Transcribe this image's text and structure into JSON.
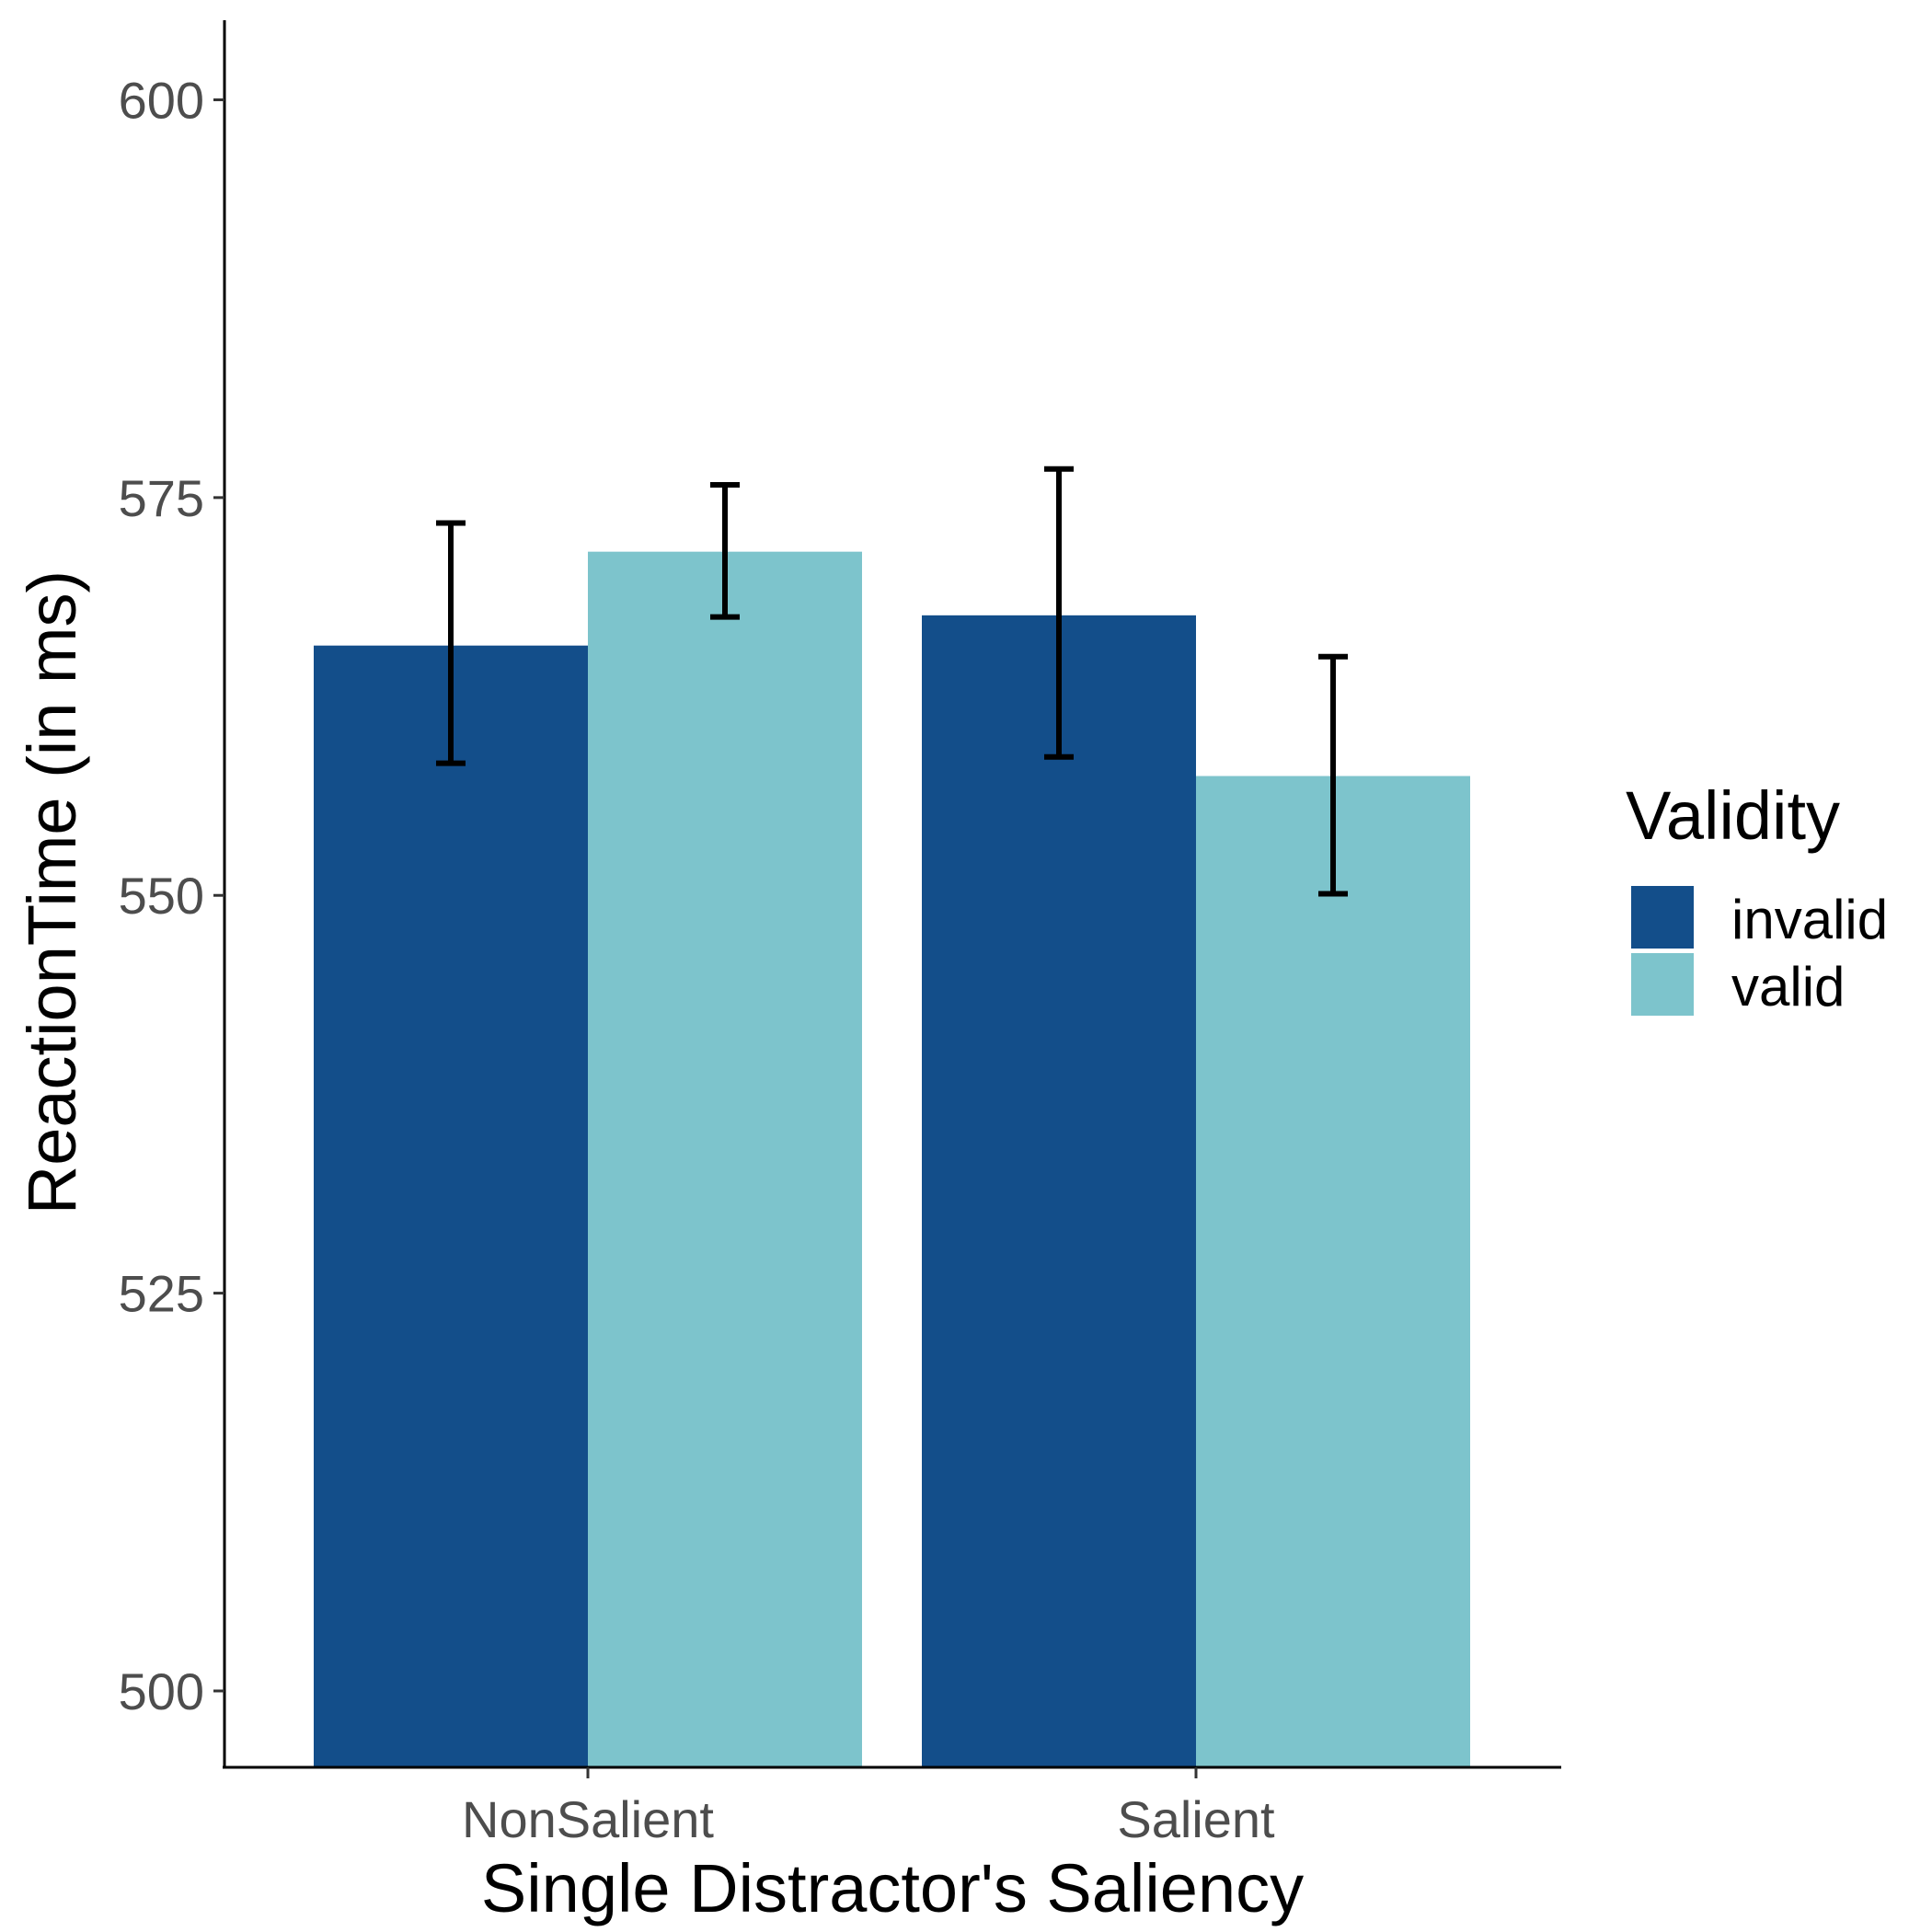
{
  "chart_data": {
    "type": "bar",
    "xlabel": "Single Distractor's Saliency",
    "ylabel": "ReactionTime (in ms)",
    "categories": [
      "NonSalient",
      "Salient"
    ],
    "ylim": [
      495.2,
      605
    ],
    "yticks": [
      "500",
      "525",
      "550",
      "575",
      "600"
    ],
    "legend": {
      "title": "Validity",
      "position": "right"
    },
    "series": [
      {
        "name": "invalid",
        "color": "#134e8a",
        "values": [
          565.7,
          567.6
        ],
        "error_low": [
          558.3,
          558.7
        ],
        "error_high": [
          573.4,
          576.8
        ]
      },
      {
        "name": "valid",
        "color": "#7dc4cc",
        "values": [
          571.6,
          557.5
        ],
        "error_low": [
          567.5,
          550.1
        ],
        "error_high": [
          575.8,
          565.0
        ]
      }
    ],
    "grid": false
  }
}
